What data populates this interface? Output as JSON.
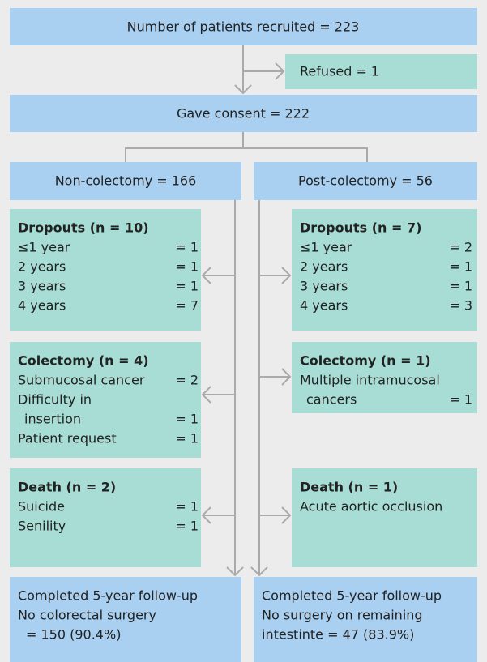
{
  "top": "Number of patients recruited = 223",
  "refused": "Refused = 1",
  "consent": "Gave consent = 222",
  "groups": [
    {
      "title": "Non-colectomy = 166",
      "sections": [
        {
          "heading": "Dropouts (n = 10)",
          "rows": [
            {
              "label": "≤1 year",
              "value": "= 1"
            },
            {
              "label": "2 years",
              "value": "= 1"
            },
            {
              "label": "3 years",
              "value": "= 1"
            },
            {
              "label": "4 years",
              "value": "= 7"
            }
          ]
        },
        {
          "heading": "Colectomy (n = 4)",
          "rows": [
            {
              "label": "Submucosal cancer",
              "value": "= 2"
            },
            {
              "label": "Difficulty in"
            },
            {
              "label": "insertion",
              "value": "= 1"
            },
            {
              "label": "Patient request",
              "value": "= 1"
            }
          ]
        },
        {
          "heading": "Death (n = 2)",
          "rows": [
            {
              "label": "Suicide",
              "value": "= 1"
            },
            {
              "label": "Senility",
              "value": "= 1"
            }
          ]
        }
      ],
      "completed": [
        "Completed 5-year follow-up",
        "No colorectal surgery",
        "= 150 (90.4%)"
      ]
    },
    {
      "title": "Post-colectomy = 56",
      "sections": [
        {
          "heading": "Dropouts (n = 7)",
          "rows": [
            {
              "label": "≤1 year",
              "value": "= 2"
            },
            {
              "label": "2 years",
              "value": "= 1"
            },
            {
              "label": "3 years",
              "value": "= 1"
            },
            {
              "label": "4 years",
              "value": "= 3"
            }
          ]
        },
        {
          "heading": "Colectomy (n = 1)",
          "rows": [
            {
              "label": "Multiple intramucosal"
            },
            {
              "label": "cancers",
              "value": "= 1"
            }
          ]
        },
        {
          "heading": "Death (n = 1)",
          "rows": [
            {
              "label": "Acute aortic occlusion"
            }
          ]
        }
      ],
      "completed": [
        "Completed 5-year follow-up",
        "No surgery on remaining",
        "intestinte = 47 (83.9%)"
      ]
    }
  ]
}
